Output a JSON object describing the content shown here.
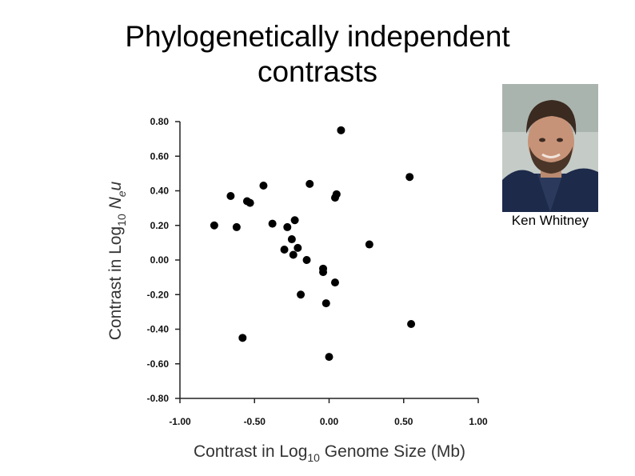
{
  "slide": {
    "title_line1": "Phylogenetically independent",
    "title_line2": "contrasts",
    "photo_caption": "Ken Whitney"
  },
  "chart_data": {
    "type": "scatter",
    "xlabel": "Contrast in Log10 Genome Size (Mb)",
    "ylabel": "Contrast in Log10 Neu",
    "xlim": [
      -1.0,
      1.0
    ],
    "ylim": [
      -0.8,
      0.8
    ],
    "x_ticks": [
      "-1.00",
      "-0.50",
      "0.00",
      "0.50",
      "1.00"
    ],
    "y_ticks": [
      "0.80",
      "0.60",
      "0.40",
      "0.20",
      "0.00",
      "-0.20",
      "-0.40",
      "-0.60",
      "-0.80"
    ],
    "grid": false,
    "marker_color": "#000000",
    "points": [
      {
        "x": 0.08,
        "y": 0.75
      },
      {
        "x": 0.54,
        "y": 0.48
      },
      {
        "x": -0.66,
        "y": 0.37
      },
      {
        "x": -0.55,
        "y": 0.34
      },
      {
        "x": -0.53,
        "y": 0.33
      },
      {
        "x": -0.44,
        "y": 0.43
      },
      {
        "x": -0.13,
        "y": 0.44
      },
      {
        "x": 0.05,
        "y": 0.38
      },
      {
        "x": 0.04,
        "y": 0.36
      },
      {
        "x": -0.77,
        "y": 0.2
      },
      {
        "x": -0.62,
        "y": 0.19
      },
      {
        "x": -0.38,
        "y": 0.21
      },
      {
        "x": -0.28,
        "y": 0.19
      },
      {
        "x": -0.23,
        "y": 0.23
      },
      {
        "x": -0.25,
        "y": 0.12
      },
      {
        "x": -0.3,
        "y": 0.06
      },
      {
        "x": -0.21,
        "y": 0.07
      },
      {
        "x": -0.24,
        "y": 0.03
      },
      {
        "x": -0.15,
        "y": 0.0
      },
      {
        "x": -0.04,
        "y": -0.05
      },
      {
        "x": -0.04,
        "y": -0.07
      },
      {
        "x": 0.04,
        "y": -0.13
      },
      {
        "x": 0.27,
        "y": 0.09
      },
      {
        "x": -0.19,
        "y": -0.2
      },
      {
        "x": -0.02,
        "y": -0.25
      },
      {
        "x": 0.55,
        "y": -0.37
      },
      {
        "x": -0.58,
        "y": -0.45
      },
      {
        "x": 0.0,
        "y": -0.56
      }
    ]
  }
}
